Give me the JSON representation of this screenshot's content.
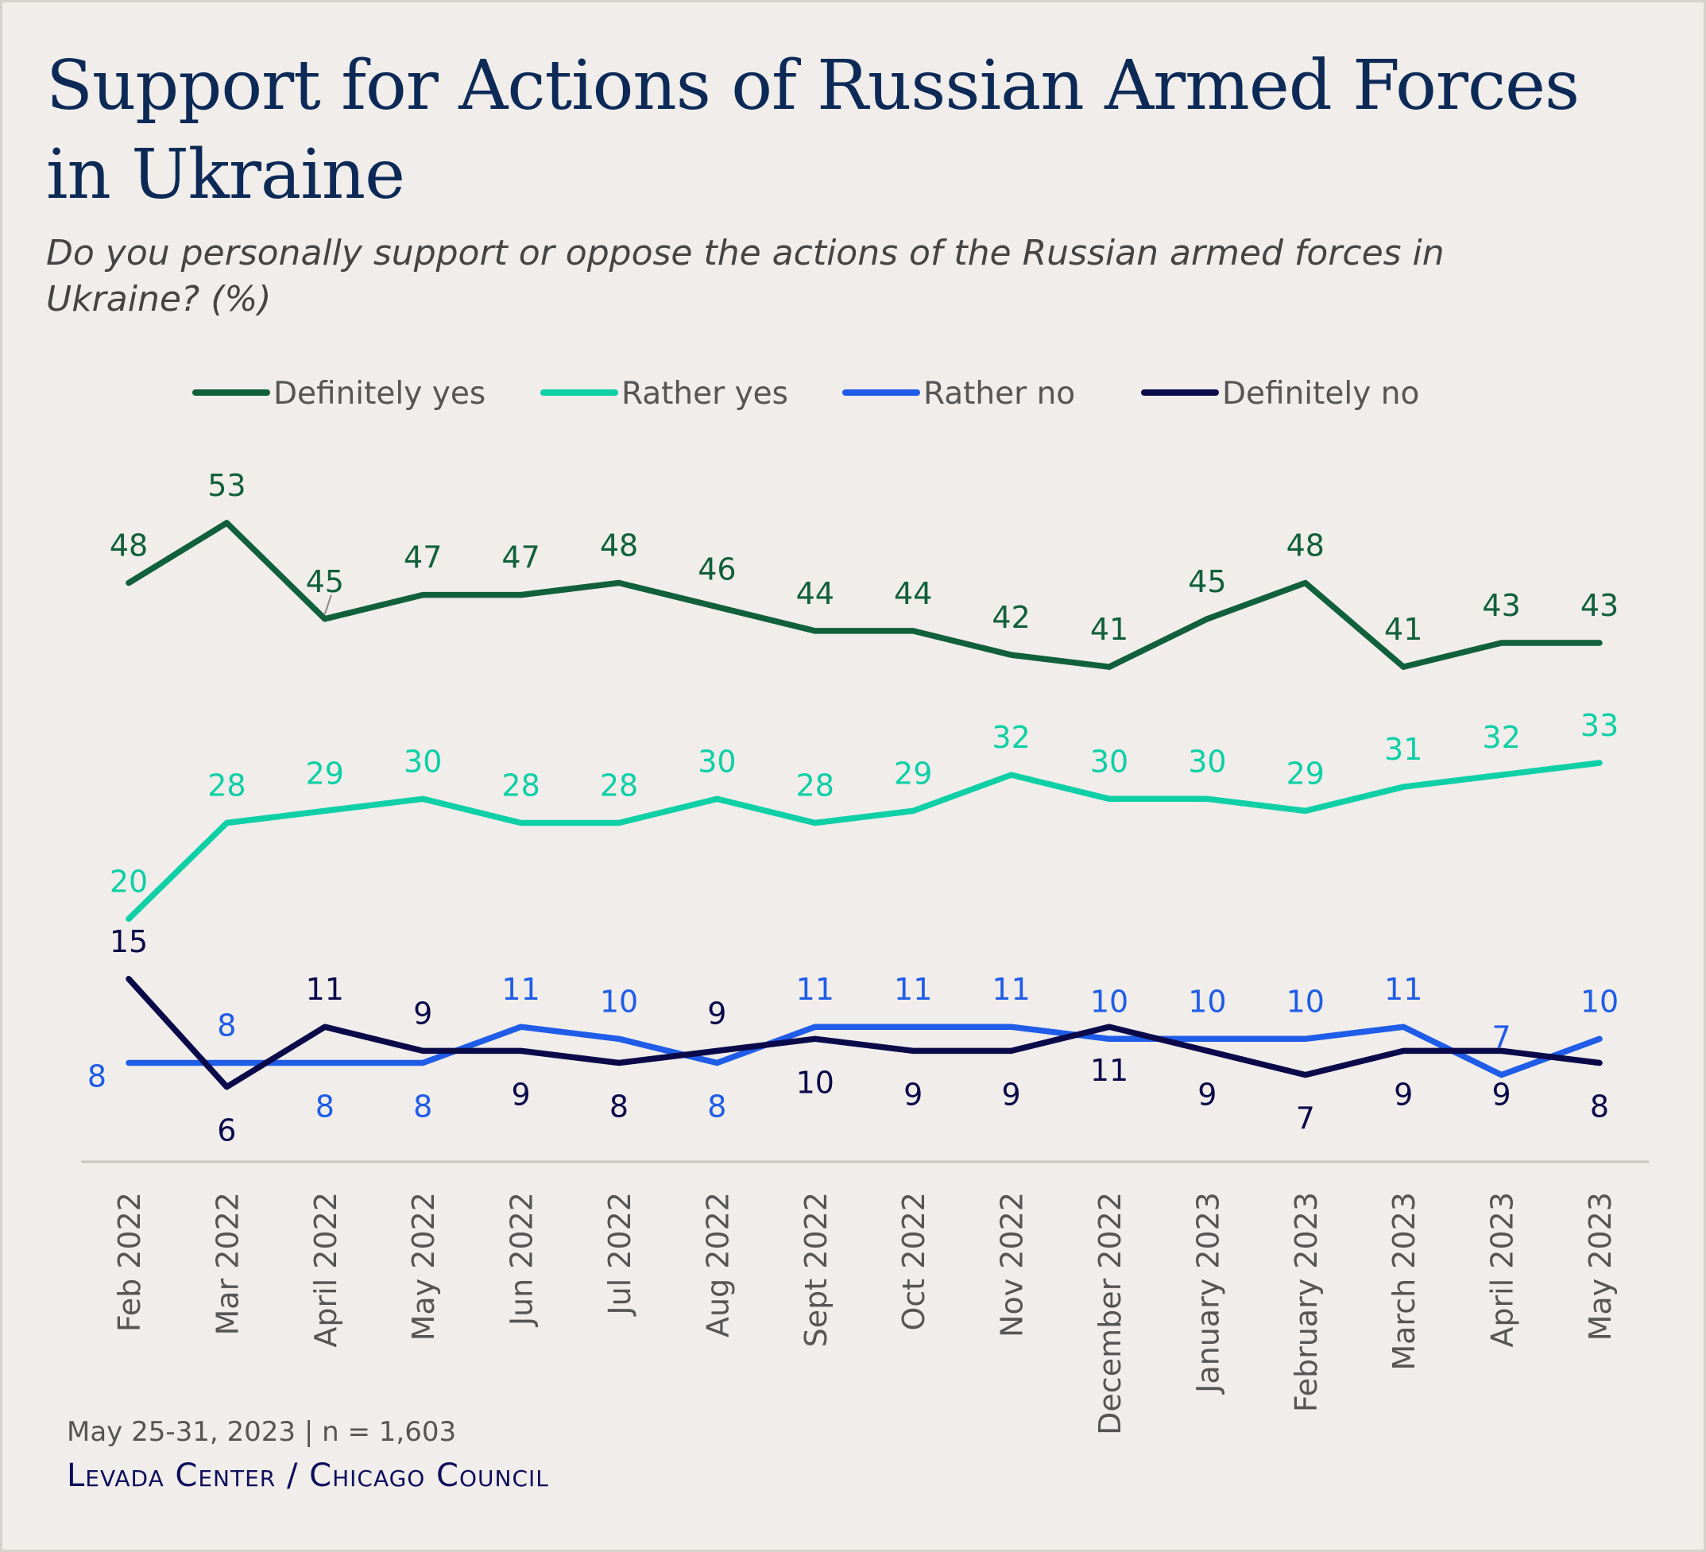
{
  "title": "Support for Actions of Russian Armed Forces in Ukraine",
  "subtitle": "Do you personally support or oppose the actions of the Russian armed forces in Ukraine? (%)",
  "footer": {
    "date_n": "May 25-31, 2023 | n = 1,603",
    "source": "Levada Center / Chicago Council"
  },
  "chart_data": {
    "type": "line",
    "categories": [
      "Feb 2022",
      "Mar 2022",
      "April 2022",
      "May 2022",
      "Jun 2022",
      "Jul 2022",
      "Aug 2022",
      "Sept 2022",
      "Oct 2022",
      "Nov 2022",
      "December 2022",
      "January 2023",
      "February 2023",
      "March 2023",
      "April 2023",
      "May 2023"
    ],
    "series": [
      {
        "name": "Definitely yes",
        "color": "#11603c",
        "values": [
          48,
          53,
          45,
          47,
          47,
          48,
          46,
          44,
          44,
          42,
          41,
          45,
          48,
          41,
          43,
          43
        ]
      },
      {
        "name": "Rather yes",
        "color": "#0ecfa6",
        "values": [
          20,
          28,
          29,
          30,
          28,
          28,
          30,
          28,
          29,
          32,
          30,
          30,
          29,
          31,
          32,
          33
        ]
      },
      {
        "name": "Rather no",
        "color": "#1f5ce8",
        "values": [
          8,
          8,
          8,
          8,
          11,
          10,
          8,
          11,
          11,
          11,
          10,
          10,
          10,
          11,
          7,
          10
        ]
      },
      {
        "name": "Definitely no",
        "color": "#0a0a4a",
        "values": [
          15,
          6,
          11,
          9,
          9,
          8,
          9,
          10,
          9,
          9,
          11,
          9,
          7,
          9,
          9,
          8
        ]
      }
    ],
    "ylim": [
      0,
      56
    ],
    "legend_position": "top",
    "grid": false,
    "data_labels": true
  }
}
